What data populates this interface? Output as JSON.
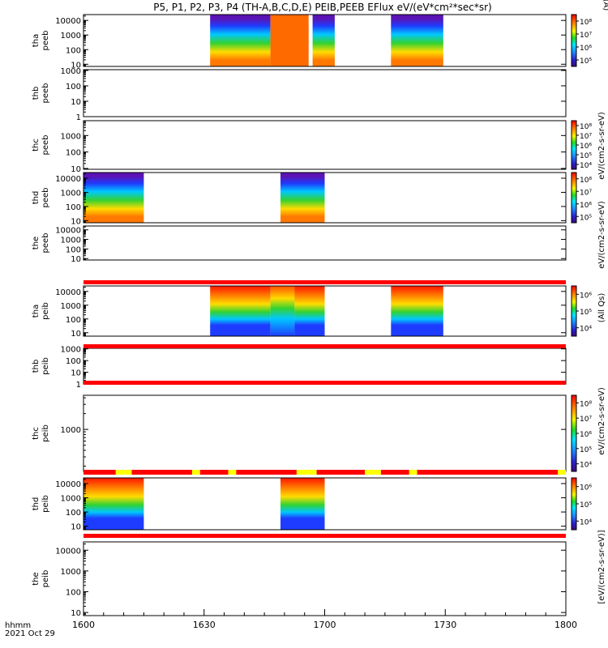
{
  "chart_data": {
    "type": "heatmap",
    "title": "P5, P1, P2, P3, P4 (TH-A,B,C,D,E) PEIB,PEEB EFlux eV/(eV*cm²*sec*sr)",
    "x_axis": {
      "range": [
        1600,
        1800
      ],
      "ticks": [
        "1600",
        "1630",
        "1700",
        "1730",
        "1800"
      ],
      "tick_minutes": [
        0,
        30,
        60,
        90,
        120
      ],
      "label": "hhmm",
      "date": "2021 Oct 29"
    },
    "colorbar_labels": {
      "top": "(A)",
      "eflux_short": "eV/(cm2-s-sr-eV)",
      "eflux_long": "[eV/(cm2-s-sr-eV)]",
      "all_qs": "(All Qs)"
    },
    "panels": [
      {
        "probe": "tha",
        "species": "peeb",
        "ylabel": "tha peeb",
        "yticks": [
          "10",
          "100",
          "1000",
          "10000"
        ],
        "log_yrange": [
          0.85,
          4.4
        ],
        "colorbar": [
          "10⁵",
          "10⁶",
          "10⁷",
          "10⁸"
        ],
        "data_intervals": [
          [
            31.5,
            46.5
          ],
          [
            46.5,
            56
          ],
          [
            57,
            62.5
          ],
          [
            76.5,
            83.5
          ],
          [
            83.5,
            89.5
          ]
        ],
        "low_energy_band_intervals": [
          [
            46.5,
            56
          ]
        ]
      },
      {
        "probe": "thb",
        "species": "peeb",
        "ylabel": "thb peeb",
        "yticks": [
          "1",
          "10",
          "100",
          "1000"
        ],
        "log_yrange": [
          0,
          3.05
        ],
        "colorbar": [],
        "data_intervals": []
      },
      {
        "probe": "thc",
        "species": "peeb",
        "ylabel": "thc peeb",
        "yticks": [
          "10",
          "100",
          "1000"
        ],
        "log_yrange": [
          0.95,
          3.9
        ],
        "colorbar": [
          "10⁴",
          "10⁵",
          "10⁶",
          "10⁷",
          "10⁸"
        ],
        "data_intervals": []
      },
      {
        "probe": "thd",
        "species": "peeb",
        "ylabel": "thd peeb",
        "yticks": [
          "10",
          "100",
          "1000",
          "10000"
        ],
        "log_yrange": [
          0.85,
          4.4
        ],
        "colorbar": [
          "10⁵",
          "10⁶",
          "10⁷",
          "10⁸"
        ],
        "data_intervals": [
          [
            0,
            15
          ],
          [
            49,
            60
          ]
        ]
      },
      {
        "probe": "the",
        "species": "peeb",
        "ylabel": "the peeb",
        "yticks": [
          "10",
          "100",
          "1000",
          "10000"
        ],
        "log_yrange": [
          0.85,
          4.4
        ],
        "colorbar": [],
        "data_intervals": []
      },
      {
        "probe": "tha",
        "species": "peib",
        "ylabel": "tha peib",
        "yticks": [
          "10",
          "100",
          "1000",
          "10000"
        ],
        "log_yrange": [
          0.75,
          4.4
        ],
        "colorbar": [
          "10⁴",
          "10⁵",
          "10⁶"
        ],
        "data_intervals": [
          [
            31.5,
            46.5
          ],
          [
            46.5,
            52.5
          ],
          [
            52.5,
            60
          ],
          [
            76.5,
            89.5
          ]
        ]
      },
      {
        "probe": "thb",
        "species": "peib",
        "ylabel": "thb peib",
        "yticks": [
          "1",
          "10",
          "100",
          "1000"
        ],
        "log_yrange": [
          0,
          3.05
        ],
        "colorbar": [],
        "data_intervals": []
      },
      {
        "probe": "thc",
        "species": "peib",
        "ylabel": "thc peib",
        "yticks": [
          "1000"
        ],
        "log_yrange": [
          2.2,
          3.65
        ],
        "colorbar": [
          "10⁴",
          "10⁵",
          "10⁶",
          "10⁷",
          "10⁸"
        ],
        "data_intervals": []
      },
      {
        "probe": "thd",
        "species": "peib",
        "ylabel": "thd peib",
        "yticks": [
          "10",
          "100",
          "1000",
          "10000"
        ],
        "log_yrange": [
          0.75,
          4.4
        ],
        "colorbar": [
          "10⁴",
          "10⁵",
          "10⁶"
        ],
        "data_intervals": [
          [
            0,
            15
          ],
          [
            49,
            60
          ]
        ]
      },
      {
        "probe": "the",
        "species": "peib",
        "ylabel": "the peib",
        "yticks": [
          "10",
          "100",
          "1000",
          "10000"
        ],
        "log_yrange": [
          0.85,
          4.4
        ],
        "colorbar": [],
        "data_intervals": []
      }
    ]
  }
}
